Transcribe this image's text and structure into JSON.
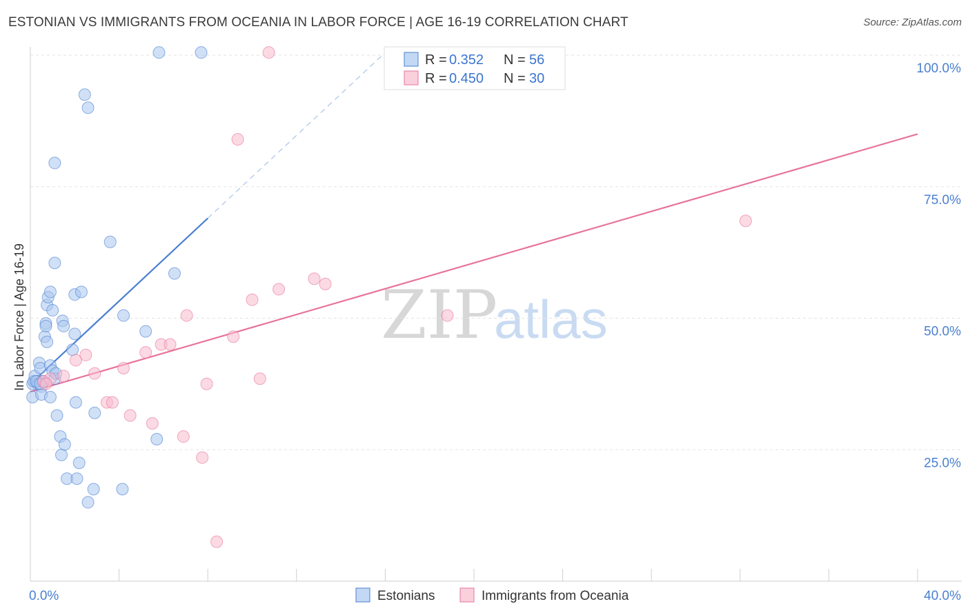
{
  "title": "ESTONIAN VS IMMIGRANTS FROM OCEANIA IN LABOR FORCE | AGE 16-19 CORRELATION CHART",
  "source": "Source: ZipAtlas.com",
  "watermark": {
    "zip": "ZIP",
    "atlas": "atlas"
  },
  "chart_data": {
    "type": "scatter",
    "title": "ESTONIAN VS IMMIGRANTS FROM OCEANIA IN LABOR FORCE | AGE 16-19 CORRELATION CHART",
    "xlabel": "",
    "ylabel": "In Labor Force | Age 16-19",
    "xlim": [
      0,
      40
    ],
    "ylim": [
      0,
      105
    ],
    "x_tick_labels": [
      {
        "value": 0,
        "label": "0.0%"
      },
      {
        "value": 40,
        "label": "40.0%"
      }
    ],
    "y_tick_labels": [
      {
        "value": 25,
        "label": "25.0%"
      },
      {
        "value": 50,
        "label": "50.0%"
      },
      {
        "value": 75,
        "label": "75.0%"
      },
      {
        "value": 100,
        "label": "100.0%"
      }
    ],
    "grid": true,
    "legend_position": "bottom-center",
    "series": [
      {
        "name": "Estonians",
        "color": "#4a7fd0",
        "fill": "#a9c7ef",
        "R": "0.352",
        "N": "56",
        "trend": {
          "x0": 0,
          "y0": 37.5,
          "x1": 8,
          "y1": 69,
          "dash_to_x": 16
        },
        "points": [
          [
            0.1,
            35
          ],
          [
            0.1,
            37.5
          ],
          [
            0.15,
            38
          ],
          [
            0.2,
            39
          ],
          [
            0.3,
            38
          ],
          [
            0.35,
            37.5
          ],
          [
            0.4,
            41.5
          ],
          [
            0.45,
            40.5
          ],
          [
            0.5,
            37
          ],
          [
            0.5,
            35.5
          ],
          [
            0.55,
            38
          ],
          [
            0.6,
            38
          ],
          [
            0.65,
            46.5
          ],
          [
            0.7,
            49
          ],
          [
            0.7,
            48.5
          ],
          [
            0.75,
            52.5
          ],
          [
            0.75,
            45.5
          ],
          [
            0.8,
            54
          ],
          [
            0.9,
            55
          ],
          [
            0.9,
            41
          ],
          [
            0.9,
            35
          ],
          [
            1.0,
            51.5
          ],
          [
            1.0,
            40
          ],
          [
            1.1,
            79.5
          ],
          [
            1.1,
            60.5
          ],
          [
            1.1,
            38.5
          ],
          [
            1.15,
            39.5
          ],
          [
            1.2,
            31.5
          ],
          [
            1.35,
            27.5
          ],
          [
            1.4,
            24
          ],
          [
            1.45,
            49.5
          ],
          [
            1.5,
            48.5
          ],
          [
            1.55,
            26
          ],
          [
            1.65,
            19.5
          ],
          [
            1.9,
            44
          ],
          [
            2.0,
            54.5
          ],
          [
            2.0,
            47
          ],
          [
            2.05,
            34
          ],
          [
            2.1,
            19.5
          ],
          [
            2.2,
            22.5
          ],
          [
            2.3,
            55
          ],
          [
            2.45,
            92.5
          ],
          [
            2.6,
            90
          ],
          [
            2.6,
            15
          ],
          [
            2.85,
            17.5
          ],
          [
            2.9,
            32
          ],
          [
            3.6,
            64.5
          ],
          [
            4.15,
            17.5
          ],
          [
            4.2,
            50.5
          ],
          [
            5.2,
            47.5
          ],
          [
            5.7,
            27
          ],
          [
            5.8,
            100.5
          ],
          [
            6.5,
            58.5
          ],
          [
            7.7,
            100.5
          ],
          [
            0.25,
            38
          ],
          [
            0.45,
            37.5
          ]
        ]
      },
      {
        "name": "Immigrants from Oceania",
        "color": "#e8739b",
        "fill": "#f7bccd",
        "R": "0.450",
        "N": "30",
        "trend": {
          "x0": 0,
          "y0": 36,
          "x1": 40,
          "y1": 85
        },
        "points": [
          [
            0.6,
            38
          ],
          [
            1.5,
            39
          ],
          [
            2.05,
            42
          ],
          [
            2.5,
            43
          ],
          [
            2.9,
            39.5
          ],
          [
            3.45,
            34
          ],
          [
            3.7,
            34
          ],
          [
            4.2,
            40.5
          ],
          [
            4.5,
            31.5
          ],
          [
            5.2,
            43.5
          ],
          [
            5.5,
            30
          ],
          [
            5.9,
            45
          ],
          [
            6.3,
            45
          ],
          [
            6.9,
            27.5
          ],
          [
            7.05,
            50.5
          ],
          [
            7.75,
            23.5
          ],
          [
            7.95,
            37.5
          ],
          [
            8.4,
            7.5
          ],
          [
            9.15,
            46.5
          ],
          [
            9.35,
            84
          ],
          [
            10.0,
            53.5
          ],
          [
            10.35,
            38.5
          ],
          [
            10.75,
            100.5
          ],
          [
            11.2,
            55.5
          ],
          [
            12.8,
            57.5
          ],
          [
            13.3,
            56.5
          ],
          [
            18.8,
            50.5
          ],
          [
            32.25,
            68.5
          ],
          [
            0.9,
            38.5
          ],
          [
            0.7,
            37.5
          ]
        ]
      }
    ]
  },
  "legend": {
    "items": [
      {
        "label": "Estonians",
        "color": "#4a7fd0",
        "fill": "#a9c7ef"
      },
      {
        "label": "Immigrants from Oceania",
        "color": "#e8739b",
        "fill": "#f7bccd"
      }
    ]
  },
  "stats_box": {
    "r_label": "R =",
    "n_label": "N ="
  }
}
